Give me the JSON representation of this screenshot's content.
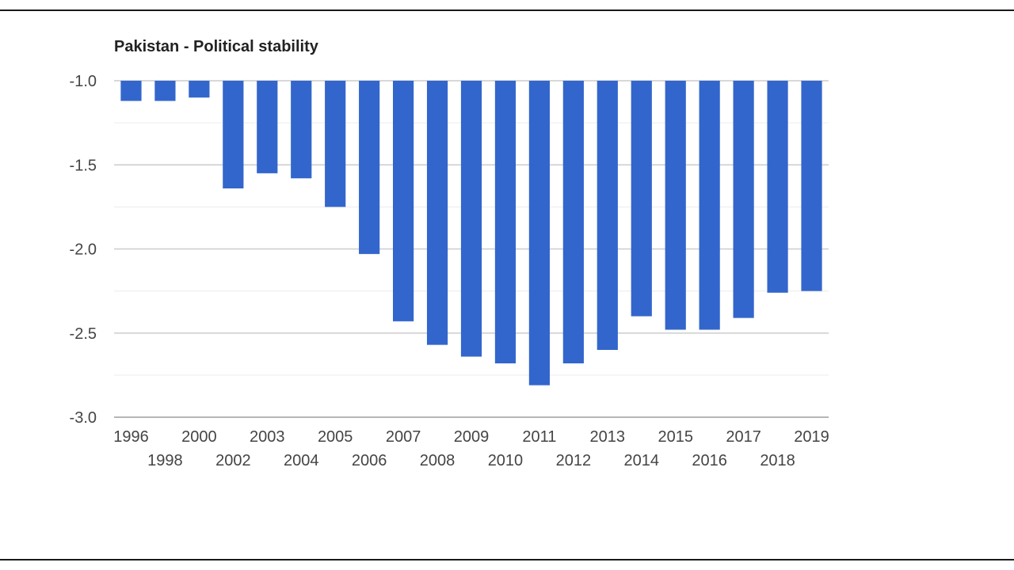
{
  "chart_data": {
    "type": "bar",
    "title": "Pakistan - Political stability",
    "xlabel": "",
    "ylabel": "",
    "categories": [
      "1996",
      "1998",
      "2000",
      "2002",
      "2003",
      "2004",
      "2005",
      "2006",
      "2007",
      "2008",
      "2009",
      "2010",
      "2011",
      "2012",
      "2013",
      "2014",
      "2015",
      "2016",
      "2017",
      "2018",
      "2019"
    ],
    "values": [
      -1.12,
      -1.12,
      -1.1,
      -1.64,
      -1.55,
      -1.58,
      -1.75,
      -2.03,
      -2.43,
      -2.57,
      -2.64,
      -2.68,
      -2.81,
      -2.68,
      -2.6,
      -2.4,
      -2.48,
      -2.48,
      -2.41,
      -2.26,
      -2.25
    ],
    "ylim": [
      -3.0,
      -1.0
    ],
    "yticks": [
      -1.0,
      -1.5,
      -2.0,
      -2.5,
      -3.0
    ],
    "ytick_labels": [
      "-1.0",
      "-1.5",
      "-2.0",
      "-2.5",
      "-3.0"
    ],
    "bar_color": "#3366cc",
    "grid": true
  }
}
